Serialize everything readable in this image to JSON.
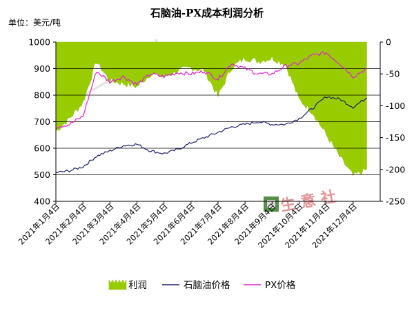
{
  "chart_data": {
    "type": "line",
    "title": "石脑油-PX成本利润分析",
    "unit_label": "单位：美元/吨",
    "x_tick_labels": [
      "2021年1月4日",
      "2021年2月4日",
      "2021年3月4日",
      "2021年4月4日",
      "2021年5月4日",
      "2021年6月4日",
      "2021年7月4日",
      "2021年8月4日",
      "2021年9月4日",
      "2021年10月4日",
      "2021年11月4日",
      "2021年12月4日"
    ],
    "left_axis": {
      "ylim": [
        400,
        1000
      ],
      "ticks": [
        "1000",
        "900",
        "800",
        "700",
        "600",
        "500",
        "400"
      ]
    },
    "right_axis": {
      "ylim": [
        -250,
        0
      ],
      "ticks": [
        "0",
        "-50",
        "-100",
        "-150",
        "-200",
        "-250"
      ]
    },
    "legend_labels": {
      "profit": "利润",
      "naphtha": "石脑油价格",
      "px": "PX价格"
    },
    "colors": {
      "profit": "#99cc00",
      "naphtha": "#1b1f6e",
      "px": "#e020d0",
      "grid": "#000000"
    },
    "series": [
      {
        "name": "石脑油价格",
        "axis": "left",
        "x": [
          0,
          0.5,
          1,
          1.5,
          2,
          2.5,
          3,
          3.5,
          4,
          4.5,
          5,
          5.5,
          6,
          6.5,
          7,
          7.5,
          8,
          8.5,
          9,
          9.5,
          10,
          10.5,
          11,
          11.5
        ],
        "values": [
          508,
          515,
          530,
          570,
          590,
          610,
          615,
          590,
          580,
          595,
          620,
          640,
          660,
          680,
          690,
          700,
          690,
          690,
          712,
          750,
          795,
          785,
          755,
          790
        ]
      },
      {
        "name": "PX价格",
        "axis": "left",
        "x": [
          0,
          0.5,
          1,
          1.5,
          2,
          2.5,
          3,
          3.5,
          4,
          4.5,
          5,
          5.5,
          6,
          6.5,
          7,
          7.5,
          8,
          8.5,
          9,
          9.5,
          10,
          10.5,
          11,
          11.5
        ],
        "values": [
          680,
          690,
          720,
          890,
          850,
          870,
          840,
          880,
          870,
          885,
          880,
          890,
          860,
          920,
          900,
          880,
          880,
          910,
          920,
          950,
          960,
          920,
          870,
          900
        ]
      },
      {
        "name": "利润",
        "axis": "right",
        "type": "area",
        "x": [
          0,
          0.5,
          1,
          1.5,
          2,
          2.5,
          3,
          3.5,
          4,
          4.5,
          5,
          5.5,
          6,
          6.5,
          7,
          7.5,
          8,
          8.5,
          9,
          9.5,
          10,
          10.5,
          11,
          11.5
        ],
        "values": [
          -140,
          -120,
          -95,
          -30,
          -60,
          -65,
          -70,
          -50,
          -55,
          -45,
          -40,
          -45,
          -85,
          -40,
          -25,
          -30,
          -25,
          -35,
          -90,
          -110,
          -145,
          -180,
          -210,
          -200
        ]
      }
    ]
  }
}
